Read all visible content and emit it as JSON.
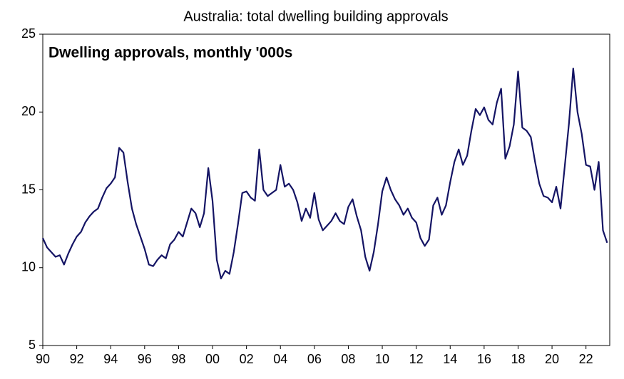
{
  "chart_data": {
    "type": "line",
    "title": "Australia: total dwelling building approvals",
    "annotation": "Dwelling approvals, monthly '000s",
    "x": [
      1990,
      1990.25,
      1990.5,
      1990.75,
      1991,
      1991.25,
      1991.5,
      1991.75,
      1992,
      1992.25,
      1992.5,
      1992.75,
      1993,
      1993.25,
      1993.5,
      1993.75,
      1994,
      1994.25,
      1994.5,
      1994.75,
      1995,
      1995.25,
      1995.5,
      1995.75,
      1996,
      1996.25,
      1996.5,
      1996.75,
      1997,
      1997.25,
      1997.5,
      1997.75,
      1998,
      1998.25,
      1998.5,
      1998.75,
      1999,
      1999.25,
      1999.5,
      1999.75,
      2000,
      2000.25,
      2000.5,
      2000.75,
      2001,
      2001.25,
      2001.5,
      2001.75,
      2002,
      2002.25,
      2002.5,
      2002.75,
      2003,
      2003.25,
      2003.5,
      2003.75,
      2004,
      2004.25,
      2004.5,
      2004.75,
      2005,
      2005.25,
      2005.5,
      2005.75,
      2006,
      2006.25,
      2006.5,
      2006.75,
      2007,
      2007.25,
      2007.5,
      2007.75,
      2008,
      2008.25,
      2008.5,
      2008.75,
      2009,
      2009.25,
      2009.5,
      2009.75,
      2010,
      2010.25,
      2010.5,
      2010.75,
      2011,
      2011.25,
      2011.5,
      2011.75,
      2012,
      2012.25,
      2012.5,
      2012.75,
      2013,
      2013.25,
      2013.5,
      2013.75,
      2014,
      2014.25,
      2014.5,
      2014.75,
      2015,
      2015.25,
      2015.5,
      2015.75,
      2016,
      2016.25,
      2016.5,
      2016.75,
      2017,
      2017.25,
      2017.5,
      2017.75,
      2018,
      2018.25,
      2018.5,
      2018.75,
      2019,
      2019.25,
      2019.5,
      2019.75,
      2020,
      2020.25,
      2020.5,
      2020.75,
      2021,
      2021.25,
      2021.5,
      2021.75,
      2022,
      2022.25,
      2022.5,
      2022.75,
      2023,
      2023.25
    ],
    "series": [
      {
        "color": "#141464",
        "values": [
          11.9,
          11.3,
          11.0,
          10.7,
          10.8,
          10.2,
          10.9,
          11.5,
          12.0,
          12.3,
          12.9,
          13.3,
          13.6,
          13.8,
          14.5,
          15.1,
          15.4,
          15.8,
          17.7,
          17.4,
          15.5,
          13.8,
          12.8,
          12.0,
          11.2,
          10.2,
          10.1,
          10.5,
          10.8,
          10.6,
          11.5,
          11.8,
          12.3,
          12.0,
          12.9,
          13.8,
          13.5,
          12.6,
          13.5,
          16.4,
          14.3,
          10.5,
          9.3,
          9.8,
          9.6,
          11.0,
          12.8,
          14.8,
          14.9,
          14.5,
          14.3,
          17.6,
          15.0,
          14.6,
          14.8,
          15.0,
          16.6,
          15.2,
          15.4,
          15.0,
          14.2,
          13.0,
          13.8,
          13.2,
          14.8,
          13.1,
          12.4,
          12.7,
          13.0,
          13.5,
          13.0,
          12.8,
          13.9,
          14.4,
          13.3,
          12.4,
          10.7,
          9.8,
          11.0,
          12.8,
          14.9,
          15.8,
          15.0,
          14.4,
          14.0,
          13.4,
          13.8,
          13.2,
          12.9,
          11.9,
          11.4,
          11.8,
          14.0,
          14.5,
          13.4,
          14.0,
          15.5,
          16.8,
          17.6,
          16.6,
          17.2,
          18.8,
          20.2,
          19.8,
          20.3,
          19.5,
          19.2,
          20.6,
          21.5,
          17.0,
          17.8,
          19.2,
          22.6,
          19.0,
          18.8,
          18.4,
          16.8,
          15.4,
          14.6,
          14.5,
          14.2,
          15.2,
          13.8,
          16.5,
          19.3,
          22.8,
          20.0,
          18.6,
          16.6,
          16.5,
          15.0,
          16.8,
          12.4,
          11.6
        ]
      }
    ],
    "xlim": [
      1990,
      2023.4
    ],
    "xticks": [
      {
        "value": 1990,
        "label": "90"
      },
      {
        "value": 1992,
        "label": "92"
      },
      {
        "value": 1994,
        "label": "94"
      },
      {
        "value": 1996,
        "label": "96"
      },
      {
        "value": 1998,
        "label": "98"
      },
      {
        "value": 2000,
        "label": "00"
      },
      {
        "value": 2002,
        "label": "02"
      },
      {
        "value": 2004,
        "label": "04"
      },
      {
        "value": 2006,
        "label": "06"
      },
      {
        "value": 2008,
        "label": "08"
      },
      {
        "value": 2010,
        "label": "10"
      },
      {
        "value": 2012,
        "label": "12"
      },
      {
        "value": 2014,
        "label": "14"
      },
      {
        "value": 2016,
        "label": "16"
      },
      {
        "value": 2018,
        "label": "18"
      },
      {
        "value": 2020,
        "label": "20"
      },
      {
        "value": 2022,
        "label": "22"
      }
    ],
    "ylim": [
      5,
      25
    ],
    "yticks": [
      5,
      10,
      15,
      20,
      25
    ],
    "grid": false
  }
}
